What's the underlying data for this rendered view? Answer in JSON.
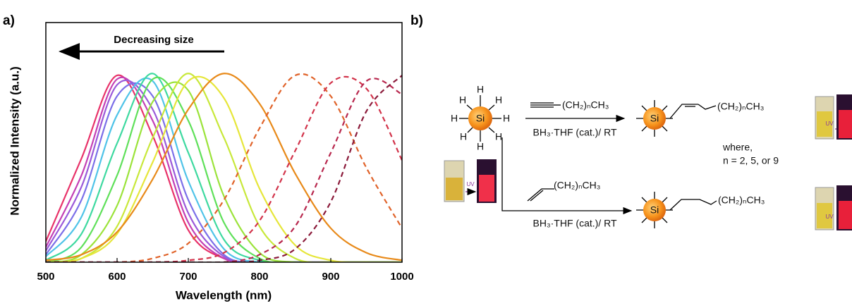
{
  "panel_labels": [
    "a)",
    "b)"
  ],
  "chart_data": {
    "type": "line",
    "x_label": "Wavelength (nm)",
    "y_label": "Normalized Intensity (a.u.)",
    "annotation": "Decreasing size",
    "x": [
      500,
      550,
      600,
      650,
      700,
      750,
      800,
      850,
      900,
      950,
      1000
    ],
    "xlim": [
      500,
      1000
    ],
    "xticks": [
      500,
      600,
      700,
      800,
      900,
      1000
    ],
    "ylim": [
      0,
      1.27
    ],
    "series": [
      {
        "color": "#e8336a",
        "line_style": "solid",
        "values": [
          0.11,
          0.55,
          0.99,
          0.67,
          0.17,
          0.02,
          0,
          0,
          0,
          0,
          0
        ]
      },
      {
        "color": "#c43fb5",
        "line_style": "solid",
        "values": [
          0.08,
          0.46,
          0.97,
          0.75,
          0.21,
          0.02,
          0,
          0,
          0,
          0,
          0
        ]
      },
      {
        "color": "#9b59d9",
        "line_style": "solid",
        "values": [
          0.06,
          0.4,
          0.94,
          0.81,
          0.26,
          0.03,
          0,
          0,
          0,
          0,
          0
        ]
      },
      {
        "color": "#7b6fe8",
        "line_style": "solid",
        "values": [
          0.04,
          0.33,
          0.88,
          0.88,
          0.33,
          0.04,
          0,
          0,
          0,
          0,
          0
        ]
      },
      {
        "color": "#4fc3e8",
        "line_style": "solid",
        "values": [
          0.03,
          0.24,
          0.78,
          0.96,
          0.43,
          0.07,
          0,
          0,
          0,
          0,
          0
        ]
      },
      {
        "color": "#3ed9a0",
        "line_style": "solid",
        "values": [
          0.01,
          0.15,
          0.63,
          1.0,
          0.58,
          0.12,
          0.01,
          0,
          0,
          0,
          0
        ]
      },
      {
        "color": "#5fe05a",
        "line_style": "solid",
        "values": [
          0,
          0.08,
          0.46,
          0.97,
          0.75,
          0.21,
          0.02,
          0,
          0,
          0,
          0
        ]
      },
      {
        "color": "#9be33a",
        "line_style": "solid",
        "values": [
          0,
          0.04,
          0.3,
          0.85,
          0.91,
          0.35,
          0.05,
          0,
          0,
          0,
          0
        ]
      },
      {
        "color": "#c8e83a",
        "line_style": "solid",
        "values": [
          0,
          0.02,
          0.19,
          0.66,
          1.0,
          0.66,
          0.19,
          0.02,
          0,
          0,
          0
        ]
      },
      {
        "color": "#e6e63a",
        "line_style": "solid",
        "values": [
          0,
          0.02,
          0.15,
          0.53,
          0.96,
          0.87,
          0.39,
          0.09,
          0.01,
          0,
          0
        ]
      },
      {
        "color": "#e88a1a",
        "line_style": "solid",
        "values": [
          0.01,
          0.04,
          0.16,
          0.44,
          0.81,
          1.0,
          0.84,
          0.47,
          0.18,
          0.05,
          0.01
        ]
      },
      {
        "color": "#e0632a",
        "line_style": "dashed",
        "values": [
          0,
          0,
          0,
          0.02,
          0.1,
          0.33,
          0.71,
          0.99,
          0.88,
          0.5,
          0.18
        ]
      },
      {
        "color": "#d2334a",
        "line_style": "dashed",
        "values": [
          0,
          0,
          0,
          0,
          0.01,
          0.05,
          0.22,
          0.59,
          0.95,
          0.92,
          0.54
        ]
      },
      {
        "color": "#b8284e",
        "line_style": "dashed",
        "values": [
          0,
          0,
          0,
          0,
          0,
          0,
          0.04,
          0.19,
          0.58,
          0.96,
          0.89
        ]
      },
      {
        "color": "#8b1a3a",
        "line_style": "dashed",
        "values": [
          0,
          0,
          0,
          0,
          0,
          0,
          0.01,
          0.07,
          0.32,
          0.8,
          0.99
        ]
      }
    ]
  },
  "scheme": {
    "h_atoms": [
      "H",
      "H",
      "H",
      "H",
      "H",
      "H",
      "H",
      "H"
    ],
    "si_labels": [
      "Si",
      "Si",
      "Si"
    ],
    "upper_reagent": "(CH₂)ₙCH₃",
    "upper_conditions": "BH₃·THF (cat.)/ RT",
    "upper_product_chain": "(CH₂)ₙCH₃",
    "lower_reagent": "(CH₂)ₙCH₃",
    "lower_conditions": "BH₃·THF (cat.)/ RT",
    "lower_product_chain": "(CH₂)ₙCH₃",
    "note": [
      "where,",
      "n = 2, 5, or 9"
    ],
    "uv_labels": [
      "UV",
      "UV",
      "UV"
    ]
  }
}
